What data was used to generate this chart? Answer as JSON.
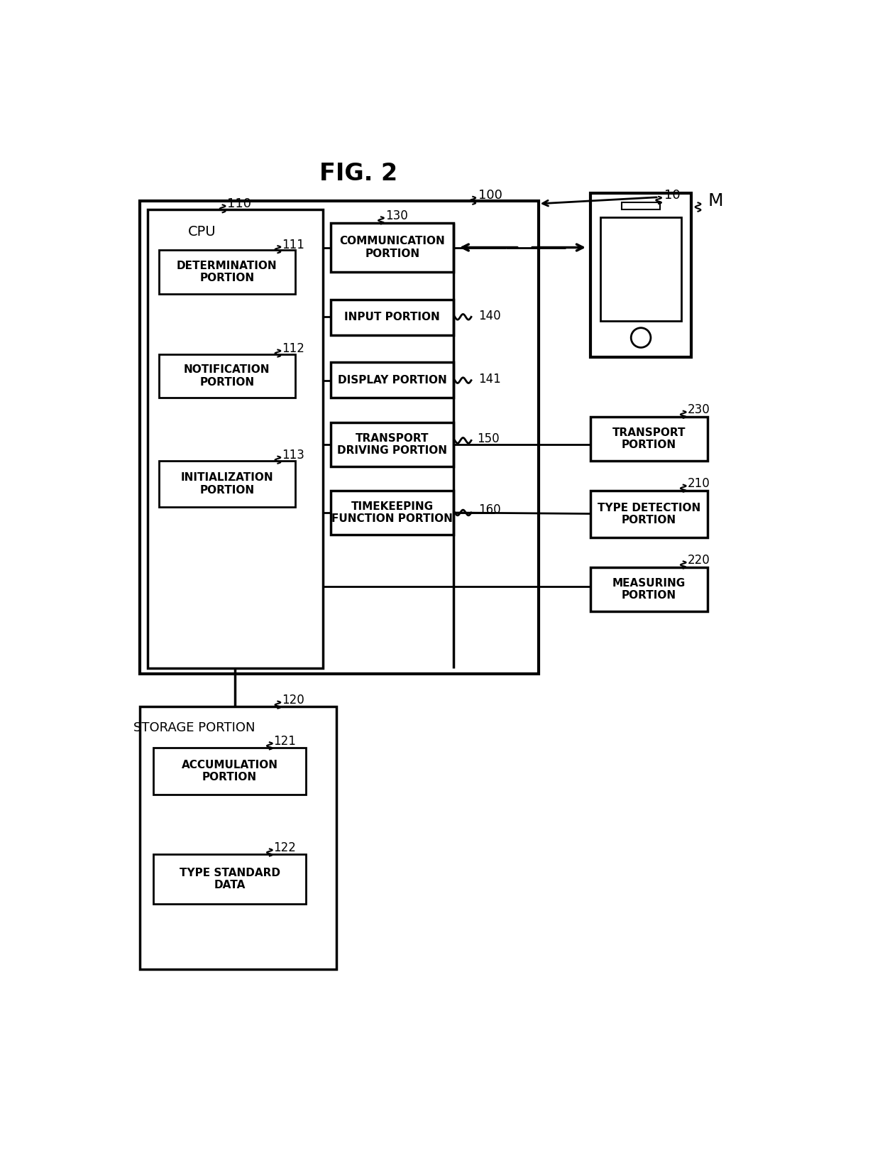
{
  "title": "FIG. 2",
  "bg_color": "#ffffff",
  "fig_label": "10",
  "main_box_label": "100",
  "cpu_box_label": "110",
  "cpu_text": "CPU",
  "storage_box_label": "120",
  "storage_text": "STORAGE PORTION",
  "phone_label": "M",
  "boxes": {
    "determination": {
      "label": "111",
      "text": "DETERMINATION\nPORTION"
    },
    "notification": {
      "label": "112",
      "text": "NOTIFICATION\nPORTION"
    },
    "initialization": {
      "label": "113",
      "text": "INITIALIZATION\nPORTION"
    },
    "communication": {
      "label": "130",
      "text": "COMMUNICATION\nPORTION"
    },
    "input": {
      "label": "140",
      "text": "INPUT PORTION"
    },
    "display": {
      "label": "141",
      "text": "DISPLAY PORTION"
    },
    "transport_driving": {
      "label": "150",
      "text": "TRANSPORT\nDRIVING PORTION"
    },
    "timekeeping": {
      "label": "160",
      "text": "TIMEKEEPING\nFUNCTION PORTION"
    },
    "transport": {
      "label": "230",
      "text": "TRANSPORT\nPORTION"
    },
    "type_detection": {
      "label": "210",
      "text": "TYPE DETECTION\nPORTION"
    },
    "measuring": {
      "label": "220",
      "text": "MEASURING\nPORTION"
    },
    "accumulation": {
      "label": "121",
      "text": "ACCUMULATION\nPORTION"
    },
    "type_standard": {
      "label": "122",
      "text": "TYPE STANDARD\nDATA"
    }
  }
}
